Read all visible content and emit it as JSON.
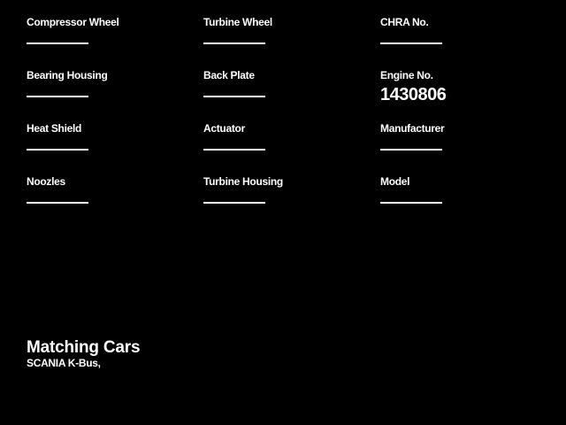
{
  "page": {
    "background_color": "#000000",
    "text_color": "#ffffff"
  },
  "parts_form": {
    "fields": [
      {
        "label": "Compressor Wheel",
        "value": ""
      },
      {
        "label": "Turbine Wheel",
        "value": ""
      },
      {
        "label": "CHRA No.",
        "value": ""
      },
      {
        "label": "Bearing Housing",
        "value": ""
      },
      {
        "label": "Back Plate",
        "value": ""
      },
      {
        "label": "Engine No.",
        "value": "1430806"
      },
      {
        "label": "Heat Shield",
        "value": ""
      },
      {
        "label": "Actuator",
        "value": ""
      },
      {
        "label": "Manufacturer",
        "value": ""
      },
      {
        "label": "Noozles",
        "value": ""
      },
      {
        "label": "Turbine Housing",
        "value": ""
      },
      {
        "label": "Model",
        "value": ""
      }
    ]
  },
  "matching_cars": {
    "title": "Matching Cars",
    "list": "SCANIA K-Bus,"
  }
}
